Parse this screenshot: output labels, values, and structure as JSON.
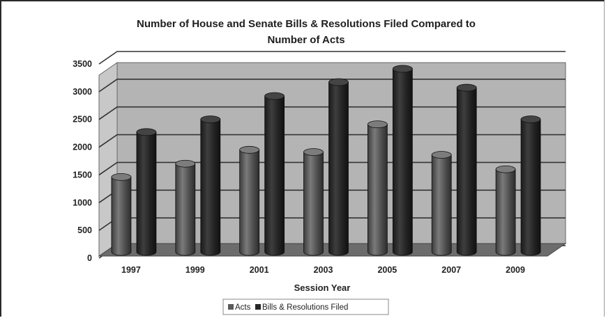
{
  "chart_data": {
    "type": "bar",
    "style": "3d-cylinder",
    "title": "Number of House and Senate Bills & Resolutions Filed Compared to Number of Acts",
    "title_lines": [
      "Number of House and Senate Bills & Resolutions Filed Compared to",
      "Number of Acts"
    ],
    "xlabel": "Session Year",
    "ylabel": "",
    "categories": [
      "1997",
      "1999",
      "2001",
      "2003",
      "2005",
      "2007",
      "2009"
    ],
    "series": [
      {
        "name": "Acts",
        "color": "#5a5a5a",
        "values": [
          1350,
          1590,
          1840,
          1800,
          2300,
          1750,
          1490
        ]
      },
      {
        "name": "Bills & Resolutions Filed",
        "color": "#262626",
        "values": [
          2160,
          2390,
          2810,
          3060,
          3300,
          2960,
          2390
        ]
      }
    ],
    "ylim": [
      0,
      3500
    ],
    "yticks": [
      "0",
      "500",
      "1000",
      "1500",
      "2000",
      "2500",
      "3000",
      "3500"
    ],
    "grid": true,
    "legend": {
      "placement": "bottom",
      "labels": [
        "Acts",
        "Bills & Resolutions Filed"
      ]
    },
    "wall_color": "#b4b4b4",
    "floor_color": "#6c6c6c"
  }
}
